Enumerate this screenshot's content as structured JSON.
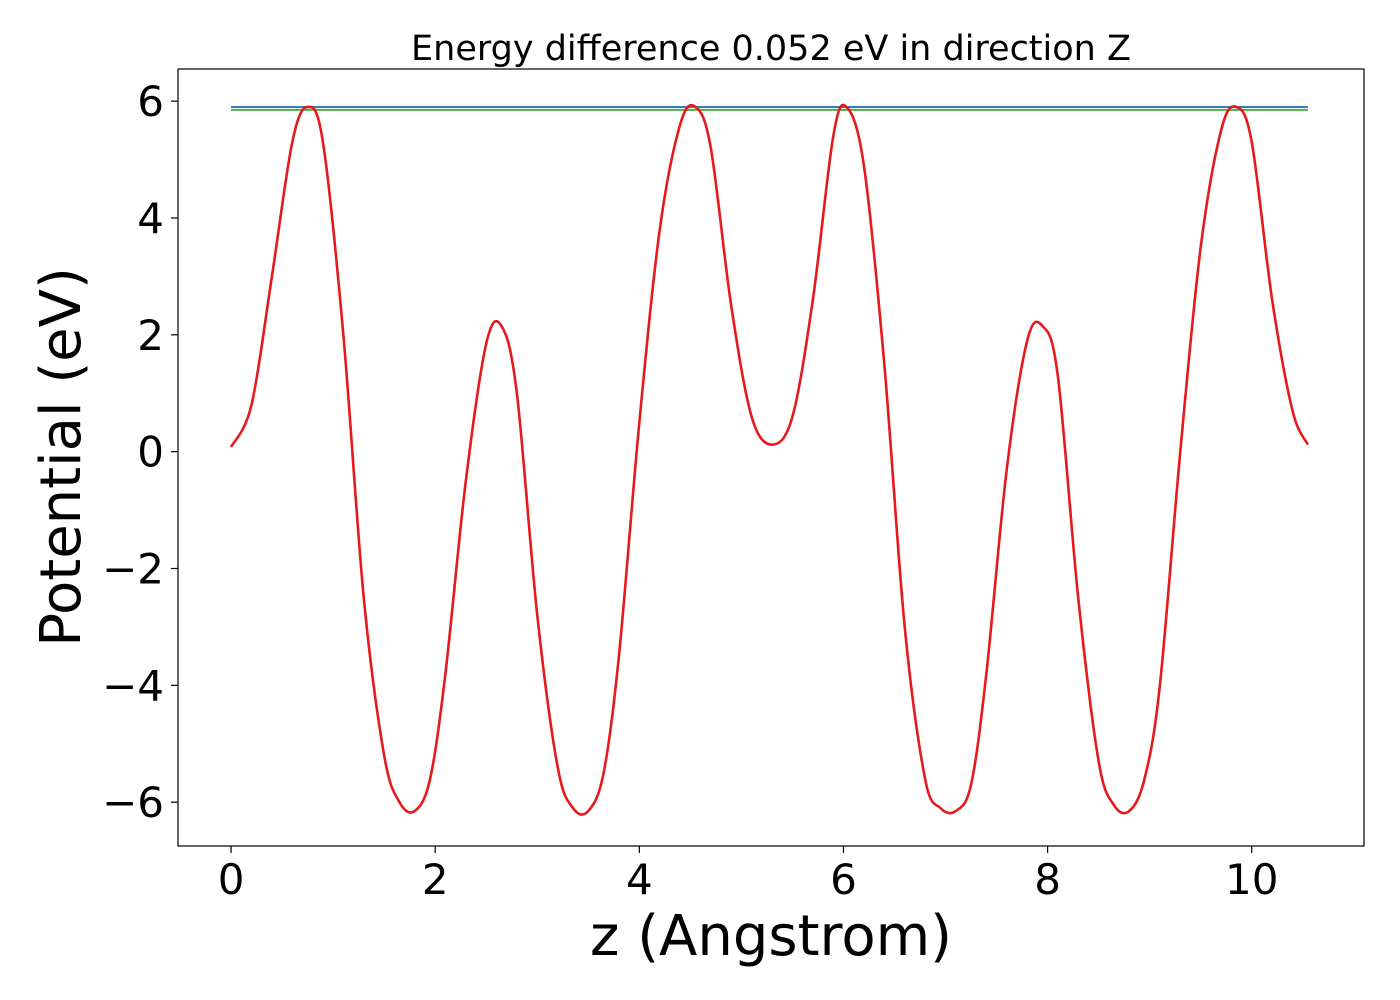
{
  "chart_data": {
    "type": "line",
    "title": "Energy difference 0.052 eV in direction Z",
    "xlabel": "z (Angstrom)",
    "ylabel": "Potential (eV)",
    "xlim": [
      -0.52,
      11.1
    ],
    "ylim": [
      -6.75,
      6.55
    ],
    "xticks": [
      0,
      2,
      4,
      6,
      8,
      10
    ],
    "yticks": [
      -6,
      -4,
      -2,
      0,
      2,
      4,
      6
    ],
    "yticklabels": [
      "−6",
      "−4",
      "−2",
      "0",
      "2",
      "4",
      "6"
    ],
    "grid": false,
    "legend": "none",
    "series": [
      {
        "color": "#e41a1c",
        "x": [
          0.0,
          0.2,
          0.4,
          0.6,
          0.75,
          0.9,
          1.1,
          1.3,
          1.5,
          1.65,
          1.8,
          1.95,
          2.1,
          2.3,
          2.5,
          2.65,
          2.8,
          3.0,
          3.2,
          3.35,
          3.5,
          3.65,
          3.8,
          4.0,
          4.2,
          4.4,
          4.55,
          4.7,
          4.9,
          5.1,
          5.3,
          5.5,
          5.7,
          5.9,
          6.03,
          6.2,
          6.4,
          6.6,
          6.8,
          6.95,
          7.1,
          7.25,
          7.4,
          7.6,
          7.8,
          7.95,
          8.1,
          8.3,
          8.5,
          8.65,
          8.8,
          8.95,
          9.1,
          9.3,
          9.5,
          9.7,
          9.85,
          10.0,
          10.2,
          10.4,
          10.55
        ],
        "y": [
          0.08,
          0.8,
          3.0,
          5.3,
          5.9,
          5.3,
          2.0,
          -2.5,
          -5.2,
          -6.0,
          -6.15,
          -5.6,
          -3.8,
          -0.5,
          1.85,
          2.15,
          1.0,
          -2.8,
          -5.4,
          -6.1,
          -6.15,
          -5.5,
          -3.5,
          0.5,
          3.8,
          5.6,
          5.9,
          5.2,
          2.5,
          0.6,
          0.12,
          0.6,
          2.6,
          5.4,
          5.9,
          4.9,
          1.5,
          -3.0,
          -5.6,
          -6.1,
          -6.15,
          -5.7,
          -3.8,
          -0.3,
          1.9,
          2.15,
          1.3,
          -2.5,
          -5.3,
          -6.05,
          -6.15,
          -5.6,
          -4.0,
          0.0,
          3.5,
          5.5,
          5.9,
          5.3,
          2.6,
          0.7,
          0.12
        ]
      },
      {
        "color": "#377eb8",
        "x": [
          0.0,
          10.55
        ],
        "y": [
          5.9,
          5.9
        ]
      },
      {
        "color": "#4daf4a",
        "x": [
          0.0,
          10.55
        ],
        "y": [
          5.85,
          5.85
        ]
      }
    ]
  }
}
